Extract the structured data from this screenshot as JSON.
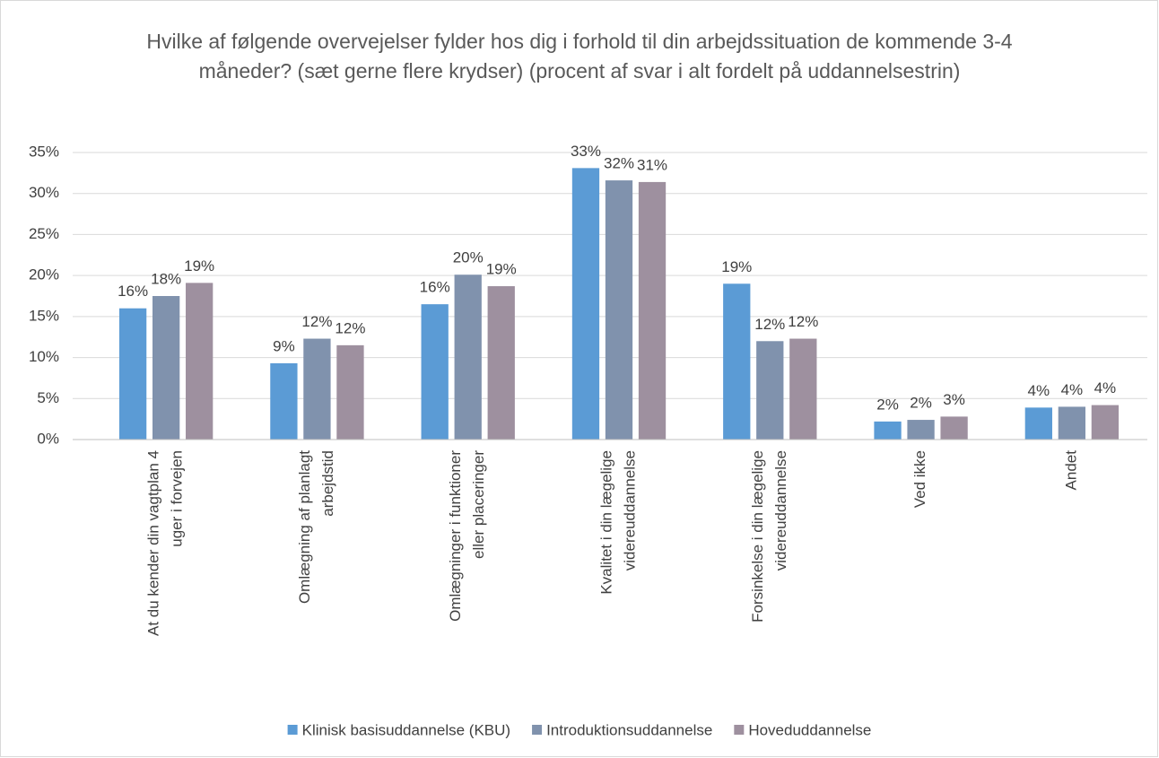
{
  "chart_data": {
    "type": "bar",
    "title": "Hvilke af følgende overvejelser fylder hos dig i forhold til din arbejdssituation de kommende 3-4 måneder? (sæt gerne flere krydser) (procent af svar i alt fordelt på uddannelsestrin)",
    "categories": [
      [
        "At du kender din vagtplan 4",
        "uger i forvejen"
      ],
      [
        "Omlægning af planlagt",
        "arbejdstid"
      ],
      [
        "Omlægninger i funktioner",
        "eller placeringer"
      ],
      [
        "Kvalitet i din lægelige",
        "videreuddannelse"
      ],
      [
        "Forsinkelse i din lægelige",
        "videreuddannelse"
      ],
      [
        "Ved ikke"
      ],
      [
        "Andet"
      ]
    ],
    "series": [
      {
        "name": "Klinisk basisuddannelse (KBU)",
        "color": "#5b9bd5",
        "values": [
          16.0,
          9.3,
          16.5,
          33.1,
          19.0,
          2.2,
          3.9
        ],
        "value_labels": [
          "16%",
          "9%",
          "16%",
          "33%",
          "19%",
          "2%",
          "4%"
        ]
      },
      {
        "name": "Introduktionsuddannelse",
        "color": "#8092ad",
        "values": [
          17.5,
          12.3,
          20.1,
          31.6,
          12.0,
          2.4,
          4.0
        ],
        "value_labels": [
          "18%",
          "12%",
          "20%",
          "32%",
          "12%",
          "2%",
          "4%"
        ]
      },
      {
        "name": "Hoveduddannelse",
        "color": "#9e909f",
        "values": [
          19.1,
          11.5,
          18.7,
          31.4,
          12.3,
          2.8,
          4.2
        ],
        "value_labels": [
          "19%",
          "12%",
          "19%",
          "31%",
          "12%",
          "3%",
          "4%"
        ]
      }
    ],
    "ylim": [
      0,
      35
    ],
    "yticks": [
      {
        "value": 0,
        "label": "0%"
      },
      {
        "value": 5,
        "label": "5%"
      },
      {
        "value": 10,
        "label": "10%"
      },
      {
        "value": 15,
        "label": "15%"
      },
      {
        "value": 20,
        "label": "20%"
      },
      {
        "value": 25,
        "label": "25%"
      },
      {
        "value": 30,
        "label": "30%"
      },
      {
        "value": 35,
        "label": "35%"
      }
    ],
    "grid": true,
    "legend": "bottom"
  }
}
